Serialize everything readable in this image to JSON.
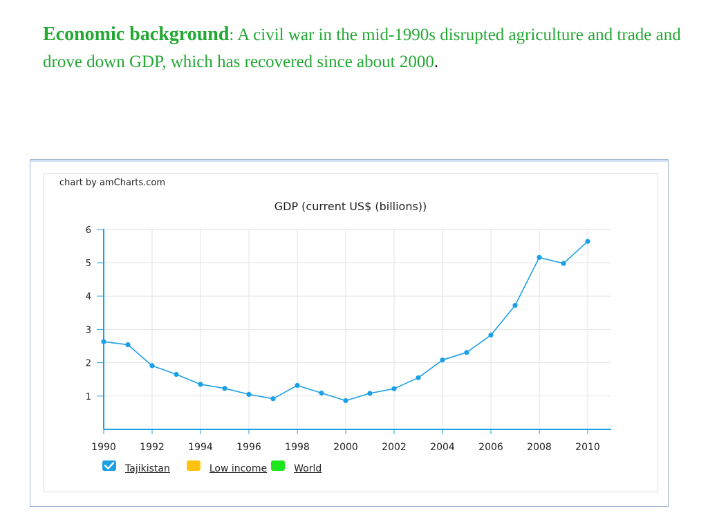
{
  "headline": {
    "lead": "Economic background",
    "colon": ":",
    "body": " A civil war in the mid-1990s disrupted agriculture and trade and drove down GDP, which has recovered since about 2000",
    "period": "."
  },
  "chart": {
    "credit": "chart by amCharts.com"
  },
  "colors": {
    "headline": "#22a833",
    "series": "#1ba0e6",
    "axis": "#1ba0e6",
    "grid": "#e3e3e3"
  },
  "legend": [
    {
      "label": "Tajikistan",
      "color": "#1ba0e6",
      "checked": true,
      "icon": "check-icon"
    },
    {
      "label": "Low income",
      "color": "#ffc20e",
      "checked": false
    },
    {
      "label": "World",
      "color": "#1ee61e",
      "checked": false
    }
  ],
  "chart_data": {
    "type": "line",
    "title": "GDP (current US$ (billions))",
    "xlabel": "",
    "ylabel": "",
    "x": [
      1990,
      1991,
      1992,
      1993,
      1994,
      1995,
      1996,
      1997,
      1998,
      1999,
      2000,
      2001,
      2002,
      2003,
      2004,
      2005,
      2006,
      2007,
      2008,
      2009,
      2010
    ],
    "series": [
      {
        "name": "Tajikistan",
        "values": [
          2.63,
          2.54,
          1.91,
          1.65,
          1.35,
          1.23,
          1.05,
          0.92,
          1.32,
          1.09,
          0.86,
          1.08,
          1.22,
          1.55,
          2.08,
          2.31,
          2.83,
          3.72,
          5.16,
          4.98,
          5.64
        ]
      }
    ],
    "xticks": [
      "1990",
      "1992",
      "1994",
      "1996",
      "1998",
      "2000",
      "2002",
      "2004",
      "2006",
      "2008",
      "2010"
    ],
    "yticks": [
      "1",
      "2",
      "3",
      "4",
      "5",
      "6"
    ],
    "xlim": [
      1990,
      2011
    ],
    "ylim": [
      0,
      6
    ],
    "grid": true,
    "legend_position": "bottom-left"
  }
}
